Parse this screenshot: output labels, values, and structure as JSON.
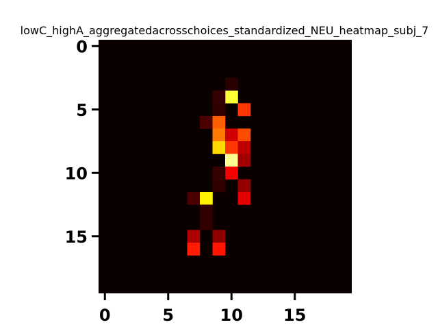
{
  "chart_data": {
    "type": "heatmap",
    "title": "lowC_highA_aggregatedacrosschoices_standardized_NEU_heatmap_subj_7",
    "xlabel": "",
    "ylabel": "",
    "rows": 20,
    "cols": 20,
    "xlim": [
      -0.5,
      19.5
    ],
    "ylim": [
      19.5,
      -0.5
    ],
    "x_ticks": [
      0,
      5,
      10,
      15
    ],
    "y_ticks": [
      0,
      5,
      10,
      15
    ],
    "colormap": "hot",
    "background_color": "#0b0000",
    "grid": false,
    "legend": "none",
    "cells": [
      {
        "row": 4,
        "col": 10,
        "value": 0.78
      },
      {
        "row": 4,
        "col": 9,
        "value": 0.04
      },
      {
        "row": 5,
        "col": 11,
        "value": 0.42
      },
      {
        "row": 5,
        "col": 9,
        "value": 0.03
      },
      {
        "row": 6,
        "col": 8,
        "value": 0.07
      },
      {
        "row": 6,
        "col": 9,
        "value": 0.48
      },
      {
        "row": 7,
        "col": 9,
        "value": 0.52
      },
      {
        "row": 7,
        "col": 10,
        "value": 0.27
      },
      {
        "row": 7,
        "col": 11,
        "value": 0.45
      },
      {
        "row": 8,
        "col": 9,
        "value": 0.66
      },
      {
        "row": 8,
        "col": 10,
        "value": 0.42
      },
      {
        "row": 8,
        "col": 11,
        "value": 0.24
      },
      {
        "row": 9,
        "col": 10,
        "value": 0.88
      },
      {
        "row": 9,
        "col": 11,
        "value": 0.2
      },
      {
        "row": 10,
        "col": 10,
        "value": 0.33
      },
      {
        "row": 10,
        "col": 9,
        "value": 0.04
      },
      {
        "row": 11,
        "col": 11,
        "value": 0.18
      },
      {
        "row": 11,
        "col": 9,
        "value": 0.03
      },
      {
        "row": 12,
        "col": 7,
        "value": 0.07
      },
      {
        "row": 12,
        "col": 8,
        "value": 0.7
      },
      {
        "row": 12,
        "col": 11,
        "value": 0.3
      },
      {
        "row": 13,
        "col": 8,
        "value": 0.03
      },
      {
        "row": 15,
        "col": 7,
        "value": 0.22
      },
      {
        "row": 15,
        "col": 9,
        "value": 0.17
      },
      {
        "row": 16,
        "col": 7,
        "value": 0.38
      },
      {
        "row": 16,
        "col": 9,
        "value": 0.37
      },
      {
        "row": 14,
        "col": 8,
        "value": 0.03
      },
      {
        "row": 3,
        "col": 10,
        "value": 0.02
      }
    ]
  }
}
